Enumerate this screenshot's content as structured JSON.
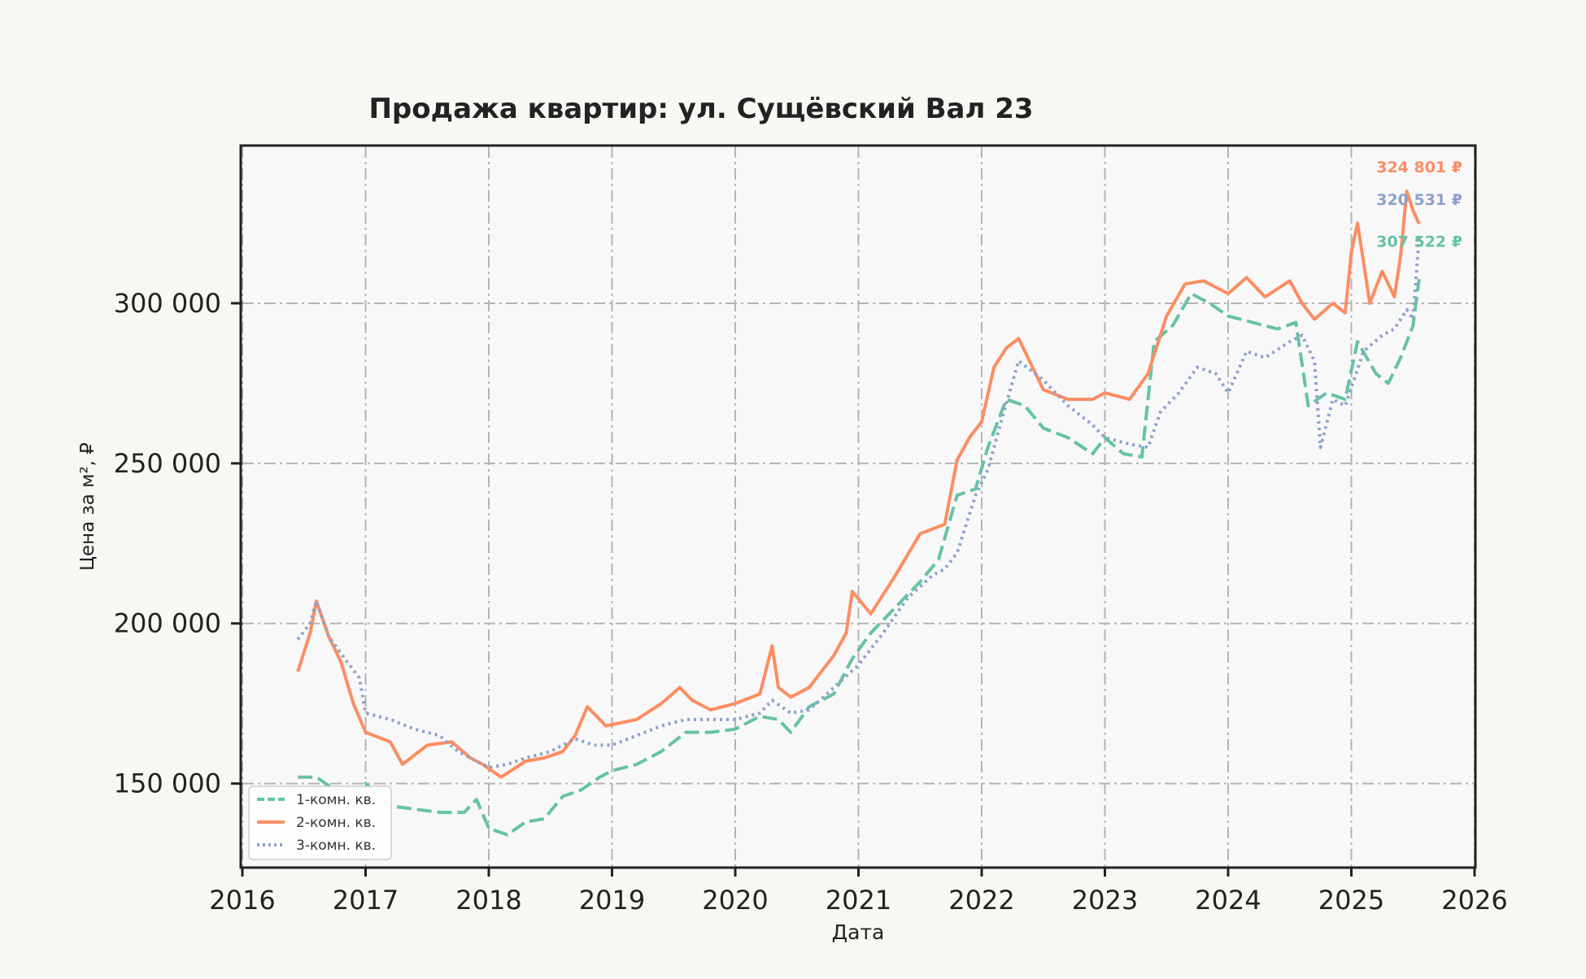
{
  "chart_data": {
    "type": "line",
    "title": "Продажа квартир: ул. Сущёвский Вал 23",
    "xlabel": "Дата",
    "ylabel": "Цена за м², ₽",
    "xlim": [
      2016,
      2026
    ],
    "ylim": [
      124000,
      349000
    ],
    "x_ticks": [
      2016,
      2017,
      2018,
      2019,
      2020,
      2021,
      2022,
      2023,
      2024,
      2025,
      2026
    ],
    "y_ticks": [
      150000,
      200000,
      250000,
      300000
    ],
    "y_tick_labels": [
      "150 000",
      "200 000",
      "250 000",
      "300 000"
    ],
    "grid": true,
    "legend_position": "bottom-left",
    "series": [
      {
        "name": "1-комн. кв.",
        "color": "#66c2a5",
        "style": "dashed",
        "end_label": "307 522 ₽",
        "x": [
          2016.45,
          2016.6,
          2016.75,
          2016.9,
          2017.0,
          2017.2,
          2017.4,
          2017.6,
          2017.8,
          2017.9,
          2018.0,
          2018.15,
          2018.3,
          2018.45,
          2018.6,
          2018.75,
          2018.9,
          2019.0,
          2019.2,
          2019.4,
          2019.6,
          2019.8,
          2020.0,
          2020.2,
          2020.35,
          2020.45,
          2020.6,
          2020.8,
          2020.95,
          2021.1,
          2021.3,
          2021.5,
          2021.65,
          2021.8,
          2021.95,
          2022.05,
          2022.2,
          2022.35,
          2022.5,
          2022.7,
          2022.9,
          2023.0,
          2023.15,
          2023.3,
          2023.4,
          2023.55,
          2023.7,
          2023.85,
          2024.0,
          2024.2,
          2024.4,
          2024.55,
          2024.65,
          2024.8,
          2024.95,
          2025.05,
          2025.2,
          2025.3,
          2025.4,
          2025.5,
          2025.55
        ],
        "y": [
          152000,
          152000,
          148000,
          145000,
          150000,
          143000,
          142000,
          141000,
          141000,
          145000,
          136000,
          134000,
          138000,
          139000,
          146000,
          148000,
          152000,
          154000,
          156000,
          160000,
          166000,
          166000,
          167000,
          171000,
          170000,
          166000,
          174000,
          178000,
          189000,
          197000,
          205000,
          213000,
          220000,
          240000,
          242000,
          255000,
          270000,
          268000,
          261000,
          258000,
          253000,
          258000,
          253000,
          252000,
          288000,
          293000,
          303000,
          300000,
          296000,
          294000,
          292000,
          294000,
          268000,
          272000,
          270000,
          288000,
          278000,
          275000,
          283000,
          293000,
          307522
        ]
      },
      {
        "name": "2-комн. кв.",
        "color": "#fc8d62",
        "style": "solid",
        "end_label": "324 801 ₽",
        "x": [
          2016.45,
          2016.55,
          2016.6,
          2016.7,
          2016.8,
          2016.9,
          2017.0,
          2017.2,
          2017.3,
          2017.5,
          2017.7,
          2017.85,
          2017.95,
          2018.1,
          2018.3,
          2018.45,
          2018.6,
          2018.7,
          2018.8,
          2018.95,
          2019.2,
          2019.4,
          2019.55,
          2019.65,
          2019.8,
          2020.0,
          2020.2,
          2020.3,
          2020.35,
          2020.45,
          2020.6,
          2020.8,
          2020.9,
          2020.95,
          2021.1,
          2021.3,
          2021.5,
          2021.7,
          2021.8,
          2021.9,
          2022.0,
          2022.1,
          2022.2,
          2022.3,
          2022.4,
          2022.5,
          2022.7,
          2022.9,
          2023.0,
          2023.2,
          2023.35,
          2023.5,
          2023.65,
          2023.8,
          2024.0,
          2024.15,
          2024.3,
          2024.5,
          2024.6,
          2024.7,
          2024.85,
          2024.95,
          2025.0,
          2025.05,
          2025.15,
          2025.25,
          2025.35,
          2025.4,
          2025.45,
          2025.5,
          2025.55
        ],
        "y": [
          185000,
          197000,
          207000,
          196000,
          188000,
          175000,
          166000,
          163000,
          156000,
          162000,
          163000,
          158000,
          156000,
          152000,
          157000,
          158000,
          160000,
          165000,
          174000,
          168000,
          170000,
          175000,
          180000,
          176000,
          173000,
          175000,
          178000,
          193000,
          180000,
          177000,
          180000,
          190000,
          197000,
          210000,
          203000,
          215000,
          228000,
          231000,
          251000,
          258000,
          263000,
          280000,
          286000,
          289000,
          281000,
          273000,
          270000,
          270000,
          272000,
          270000,
          278000,
          296000,
          306000,
          307000,
          303000,
          308000,
          302000,
          307000,
          300000,
          295000,
          300000,
          297000,
          316000,
          325000,
          300000,
          310000,
          302000,
          315000,
          335000,
          329000,
          324801
        ]
      },
      {
        "name": "3-комн. кв.",
        "color": "#8da0cb",
        "style": "dotted",
        "end_label": "320 531 ₽",
        "x": [
          2016.45,
          2016.55,
          2016.6,
          2016.7,
          2016.85,
          2016.95,
          2017.0,
          2017.2,
          2017.4,
          2017.6,
          2017.75,
          2017.9,
          2018.0,
          2018.15,
          2018.3,
          2018.5,
          2018.7,
          2018.85,
          2019.0,
          2019.2,
          2019.4,
          2019.6,
          2019.8,
          2020.0,
          2020.2,
          2020.3,
          2020.45,
          2020.6,
          2020.8,
          2021.0,
          2021.2,
          2021.4,
          2021.6,
          2021.7,
          2021.8,
          2021.95,
          2022.05,
          2022.15,
          2022.3,
          2022.5,
          2022.7,
          2022.9,
          2023.0,
          2023.2,
          2023.35,
          2023.45,
          2023.6,
          2023.75,
          2023.9,
          2024.0,
          2024.15,
          2024.3,
          2024.5,
          2024.6,
          2024.7,
          2024.75,
          2024.85,
          2024.95,
          2025.1,
          2025.25,
          2025.35,
          2025.45,
          2025.5,
          2025.55
        ],
        "y": [
          195000,
          200000,
          207000,
          196000,
          188000,
          183000,
          172000,
          170000,
          167000,
          165000,
          160000,
          157000,
          155000,
          156000,
          158000,
          160000,
          164000,
          162000,
          162000,
          165000,
          168000,
          170000,
          170000,
          170000,
          172000,
          176000,
          172000,
          173000,
          180000,
          187000,
          197000,
          208000,
          215000,
          217000,
          222000,
          240000,
          248000,
          262000,
          282000,
          276000,
          268000,
          262000,
          258000,
          256000,
          255000,
          266000,
          272000,
          280000,
          278000,
          272000,
          285000,
          283000,
          288000,
          290000,
          282000,
          255000,
          270000,
          268000,
          285000,
          290000,
          292000,
          298000,
          295000,
          320531
        ]
      }
    ]
  }
}
